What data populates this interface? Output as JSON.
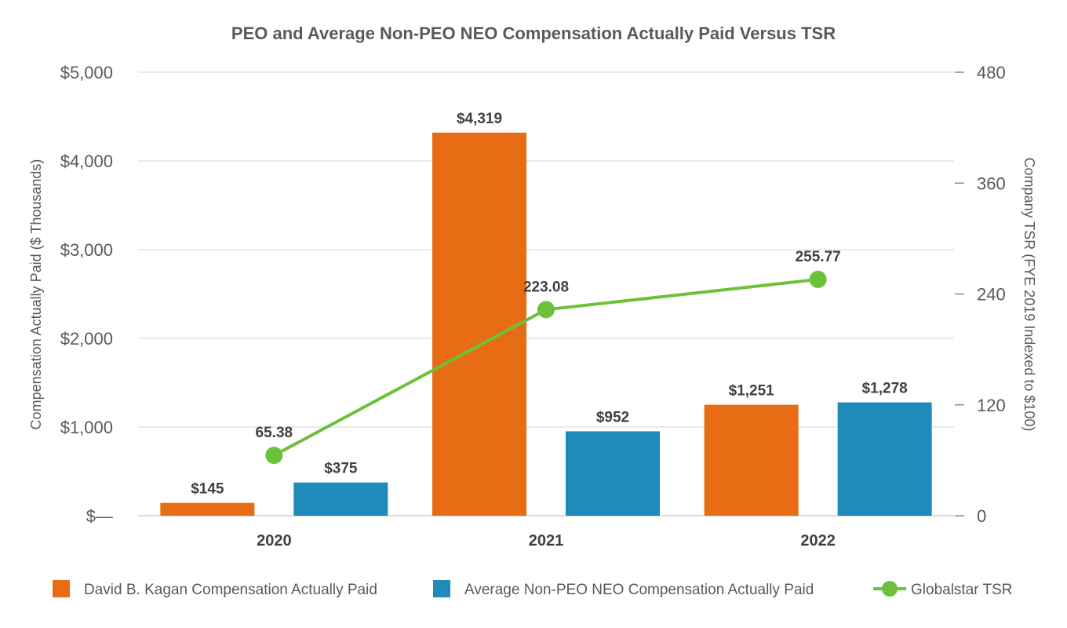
{
  "chart_data": {
    "type": "bar",
    "title": "PEO and Average Non-PEO NEO Compensation Actually Paid Versus TSR",
    "ylabel": "Compensation Actually Paid ($ Thousands)",
    "y2label": "Company TSR (FYE 2019 Indexed to $100)",
    "categories": [
      "2020",
      "2021",
      "2022"
    ],
    "ylim": [
      0,
      5000
    ],
    "y2lim": [
      0,
      480
    ],
    "y_ticks": [
      {
        "value": 0,
        "label": "$—"
      },
      {
        "value": 1000,
        "label": "$1,000"
      },
      {
        "value": 2000,
        "label": "$2,000"
      },
      {
        "value": 3000,
        "label": "$3,000"
      },
      {
        "value": 4000,
        "label": "$4,000"
      },
      {
        "value": 5000,
        "label": "$5,000"
      }
    ],
    "y2_ticks": [
      {
        "value": 0,
        "label": "0"
      },
      {
        "value": 120,
        "label": "120"
      },
      {
        "value": 240,
        "label": "240"
      },
      {
        "value": 360,
        "label": "360"
      },
      {
        "value": 480,
        "label": "480"
      }
    ],
    "series": [
      {
        "name": "David B. Kagan Compensation Actually Paid",
        "type": "bar",
        "axis": "left",
        "color": "#e86c13",
        "values": [
          145,
          4319,
          1251
        ],
        "labels": [
          "$145",
          "$4,319",
          "$1,251"
        ]
      },
      {
        "name": "Average Non-PEO NEO Compensation Actually Paid",
        "type": "bar",
        "axis": "left",
        "color": "#1f8bb9",
        "values": [
          375,
          952,
          1278
        ],
        "labels": [
          "$375",
          "$952",
          "$1,278"
        ]
      },
      {
        "name": "Globalstar TSR",
        "type": "line",
        "axis": "right",
        "color": "#6cc13a",
        "values": [
          65.38,
          223.08,
          255.77
        ],
        "labels": [
          "65.38",
          "223.08",
          "255.77"
        ]
      }
    ],
    "legend": "bottom"
  }
}
